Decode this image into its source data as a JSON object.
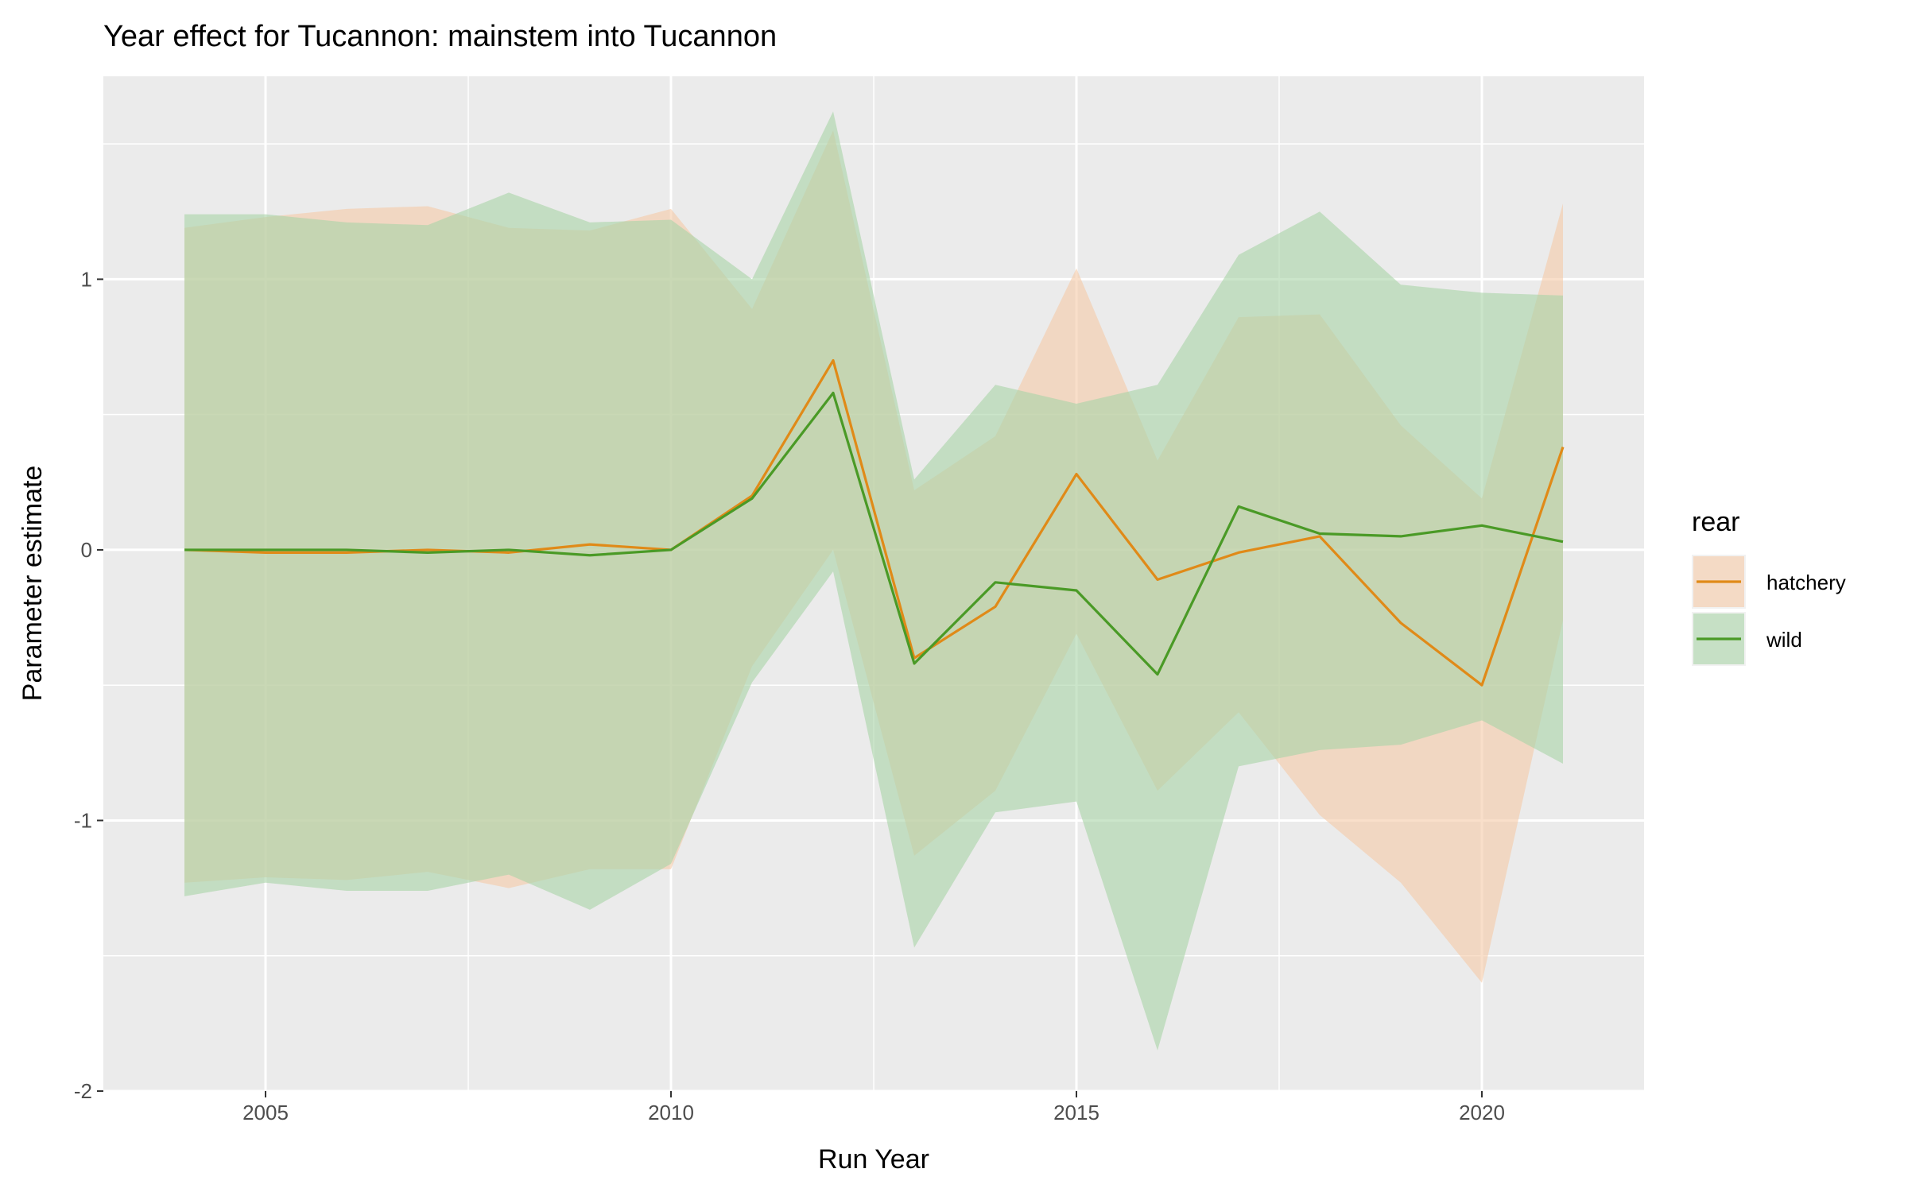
{
  "chart_data": {
    "type": "line",
    "title": "Year effect for Tucannon: mainstem into Tucannon",
    "xlabel": "Run Year",
    "ylabel": "Parameter estimate",
    "xlim": [
      2003,
      2022
    ],
    "ylim": [
      -2.0,
      1.75
    ],
    "x_ticks": [
      2005,
      2010,
      2015,
      2020
    ],
    "y_ticks": [
      -2,
      -1,
      0,
      1
    ],
    "x_tick_labels": [
      "2005",
      "2010",
      "2015",
      "2020"
    ],
    "y_tick_labels": [
      "-2",
      "-1",
      "0",
      "1"
    ],
    "grid": true,
    "legend_position": "right",
    "legend_title": "rear",
    "x": [
      2004,
      2005,
      2006,
      2007,
      2008,
      2009,
      2010,
      2011,
      2012,
      2013,
      2014,
      2015,
      2016,
      2017,
      2018,
      2019,
      2020,
      2021
    ],
    "series": [
      {
        "name": "hatchery",
        "line_color": "#E08A18",
        "band_color": "#F5C9A6",
        "values": [
          0.0,
          -0.01,
          -0.01,
          0.0,
          -0.01,
          0.02,
          0.0,
          0.2,
          0.7,
          -0.4,
          -0.21,
          0.28,
          -0.11,
          -0.01,
          0.05,
          -0.27,
          -0.5,
          0.38
        ],
        "upper": [
          1.19,
          1.23,
          1.26,
          1.27,
          1.19,
          1.18,
          1.26,
          0.89,
          1.55,
          0.22,
          0.42,
          1.04,
          0.33,
          0.86,
          0.87,
          0.46,
          0.19,
          1.28
        ],
        "lower": [
          -1.23,
          -1.21,
          -1.22,
          -1.19,
          -1.25,
          -1.18,
          -1.18,
          -0.43,
          0.0,
          -1.13,
          -0.89,
          -0.31,
          -0.89,
          -0.6,
          -0.98,
          -1.23,
          -1.6,
          -0.26
        ]
      },
      {
        "name": "wild",
        "line_color": "#4A9A26",
        "band_color": "#A9D3A6",
        "values": [
          0.0,
          0.0,
          0.0,
          -0.01,
          0.0,
          -0.02,
          0.0,
          0.19,
          0.58,
          -0.42,
          -0.12,
          -0.15,
          -0.46,
          0.16,
          0.06,
          0.05,
          0.09,
          0.03
        ],
        "upper": [
          1.24,
          1.24,
          1.21,
          1.2,
          1.32,
          1.21,
          1.22,
          1.0,
          1.62,
          0.26,
          0.61,
          0.54,
          0.61,
          1.09,
          1.25,
          0.98,
          0.95,
          0.94
        ],
        "lower": [
          -1.28,
          -1.23,
          -1.26,
          -1.26,
          -1.2,
          -1.33,
          -1.16,
          -0.49,
          -0.08,
          -1.47,
          -0.97,
          -0.93,
          -1.85,
          -0.8,
          -0.74,
          -0.72,
          -0.63,
          -0.79
        ]
      }
    ]
  }
}
